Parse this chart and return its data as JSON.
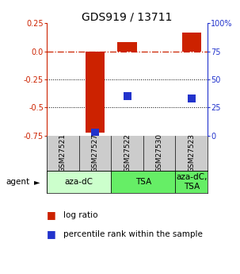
{
  "title": "GDS919 / 13711",
  "samples": [
    "GSM27521",
    "GSM27527",
    "GSM27522",
    "GSM27530",
    "GSM27523"
  ],
  "log_ratios": [
    0.0,
    -0.72,
    0.08,
    0.0,
    0.17
  ],
  "percentile_ranks": [
    null,
    3.0,
    35.0,
    null,
    33.0
  ],
  "agents": [
    {
      "label": "aza-dC",
      "start": 0,
      "end": 2,
      "color": "#ccffcc"
    },
    {
      "label": "TSA",
      "start": 2,
      "end": 4,
      "color": "#66ee66"
    },
    {
      "label": "aza-dC,\nTSA",
      "start": 4,
      "end": 5,
      "color": "#66ee66"
    }
  ],
  "ylim_left": [
    -0.75,
    0.25
  ],
  "ylim_right": [
    0,
    100
  ],
  "yticks_left": [
    0.25,
    0.0,
    -0.25,
    -0.5,
    -0.75
  ],
  "yticks_right": [
    100,
    75,
    50,
    25,
    0
  ],
  "bar_color": "#cc2200",
  "dot_color": "#2233cc",
  "hline_color": "#cc2200",
  "grid_color": "#000000",
  "bg_color": "#ffffff",
  "sample_bg": "#cccccc",
  "legend_log": "log ratio",
  "legend_pct": "percentile rank within the sample",
  "agent_label": "agent",
  "bar_width": 0.6,
  "dot_size": 50,
  "title_fontsize": 10,
  "tick_fontsize": 7,
  "legend_fontsize": 7.5,
  "agent_fontsize": 7.5,
  "sample_fontsize": 6.5
}
